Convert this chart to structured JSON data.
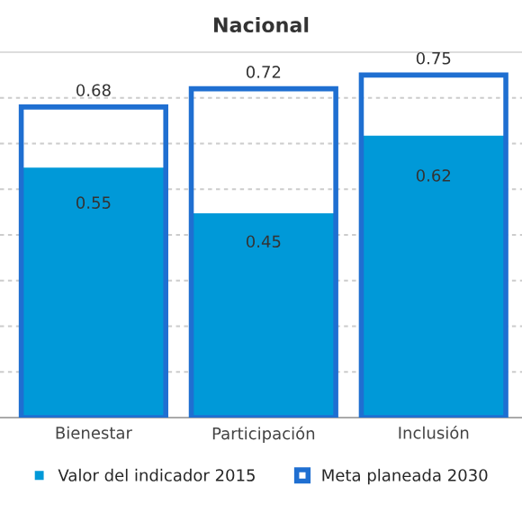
{
  "chart_data": {
    "type": "bar",
    "title": "Nacional",
    "categories": [
      "Bienestar",
      "Participación",
      "Inclusión"
    ],
    "series": [
      {
        "name": "Valor del indicador 2015",
        "color": "#0099d8",
        "values": [
          0.55,
          0.45,
          0.62
        ]
      },
      {
        "name": "Meta planeada 2030",
        "color": "#1f6fd1",
        "values": [
          0.68,
          0.72,
          0.75
        ]
      }
    ],
    "ylim": [
      0,
      0.8
    ],
    "yticks": [
      {
        "value": 0,
        "label": null
      },
      {
        "value": 0.1,
        "label": null
      },
      {
        "value": 0.2,
        "label": null
      },
      {
        "value": 0.3,
        "label": null
      },
      {
        "value": 0.4,
        "label": null
      },
      {
        "value": 0.5,
        "label": null
      },
      {
        "value": 0.6,
        "label": null
      },
      {
        "value": 0.7,
        "label": null
      },
      {
        "value": 0.8,
        "label": null
      }
    ],
    "tick_labels": "x",
    "grid": "y",
    "legend": "bottom",
    "data_labels": true
  }
}
